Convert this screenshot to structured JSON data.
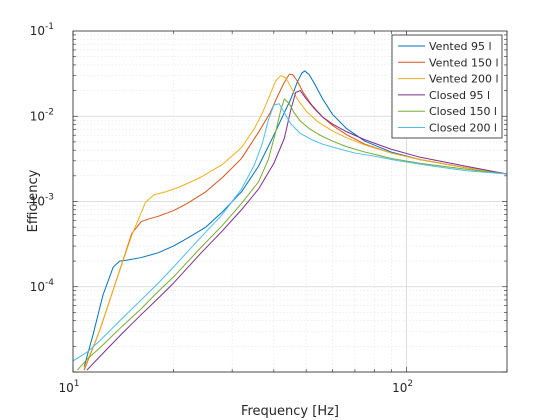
{
  "chart_data": {
    "type": "line",
    "xlabel": "Frequency [Hz]",
    "ylabel": "Efficiency",
    "xscale": "log",
    "yscale": "log",
    "xlim": [
      10,
      200
    ],
    "ylim": [
      1e-05,
      0.1
    ],
    "grid": "on",
    "legend_position": "top-right",
    "x_ticks": [
      {
        "value": 10,
        "base": "10",
        "exp": "1"
      },
      {
        "value": 100,
        "base": "10",
        "exp": "2"
      }
    ],
    "y_ticks": [
      {
        "value": 0.0001,
        "base": "10",
        "exp": "-4"
      },
      {
        "value": 0.001,
        "base": "10",
        "exp": "-3"
      },
      {
        "value": 0.01,
        "base": "10",
        "exp": "-2"
      },
      {
        "value": 0.1,
        "base": "10",
        "exp": "-1"
      }
    ],
    "series": [
      {
        "name": "Vented 95 l",
        "color": "#0072BD",
        "x": [
          10.8,
          11.5,
          12.3,
          13.2,
          13.8,
          14.5,
          16,
          18,
          20,
          22,
          25,
          28,
          32,
          36,
          40,
          43,
          45,
          47,
          48.5,
          49.5,
          51,
          53,
          56,
          60,
          66,
          75,
          90,
          110,
          150,
          200
        ],
        "y": [
          1.15e-05,
          2.8e-05,
          8e-05,
          0.00017,
          0.0002,
          0.000205,
          0.00022,
          0.00025,
          0.0003,
          0.00037,
          0.0005,
          0.00075,
          0.0013,
          0.0026,
          0.006,
          0.011,
          0.016,
          0.025,
          0.032,
          0.034,
          0.031,
          0.024,
          0.016,
          0.0105,
          0.0072,
          0.0051,
          0.0038,
          0.0031,
          0.0025,
          0.0021
        ]
      },
      {
        "name": "Vented 150 l",
        "color": "#D95319",
        "x": [
          10.8,
          12,
          13.5,
          15,
          16,
          16.8,
          18,
          20,
          22,
          25,
          28,
          32,
          36,
          39,
          41,
          43,
          44.5,
          45.5,
          47,
          49,
          52,
          56,
          60,
          66,
          75,
          90,
          110,
          150,
          200
        ],
        "y": [
          1.05e-05,
          3e-05,
          0.00012,
          0.00042,
          0.00058,
          0.00062,
          0.00067,
          0.00078,
          0.00095,
          0.0013,
          0.0019,
          0.0032,
          0.0065,
          0.011,
          0.017,
          0.025,
          0.031,
          0.031,
          0.026,
          0.019,
          0.0135,
          0.0098,
          0.0078,
          0.0061,
          0.0047,
          0.0037,
          0.0031,
          0.0025,
          0.0021
        ]
      },
      {
        "name": "Vented 200 l",
        "color": "#EDB120",
        "x": [
          10.8,
          12,
          13.5,
          15,
          16.5,
          17.5,
          19,
          21,
          24,
          28,
          32,
          35,
          37,
          39,
          40.5,
          42,
          43.5,
          45,
          47,
          50,
          54,
          60,
          66,
          75,
          90,
          110,
          150,
          200
        ],
        "y": [
          1.1e-05,
          3e-05,
          0.00012,
          0.0004,
          0.00098,
          0.0012,
          0.0013,
          0.0015,
          0.0019,
          0.0027,
          0.0043,
          0.0072,
          0.011,
          0.018,
          0.026,
          0.03,
          0.028,
          0.022,
          0.016,
          0.0115,
          0.0087,
          0.0067,
          0.0056,
          0.0046,
          0.0037,
          0.0031,
          0.0025,
          0.0021
        ]
      },
      {
        "name": "Closed 95 l",
        "color": "#7E2F8E",
        "x": [
          11,
          12,
          14,
          16,
          18,
          20,
          24,
          28,
          32,
          36,
          40,
          43,
          45,
          46.5,
          48,
          50,
          53,
          56,
          60,
          66,
          75,
          90,
          110,
          150,
          200
        ],
        "y": [
          1.05e-05,
          1.5e-05,
          2.8e-05,
          4.7e-05,
          7.3e-05,
          0.00011,
          0.00024,
          0.00045,
          0.0008,
          0.0014,
          0.0028,
          0.0055,
          0.012,
          0.019,
          0.02,
          0.016,
          0.0122,
          0.0098,
          0.0081,
          0.0066,
          0.0053,
          0.0041,
          0.0033,
          0.0026,
          0.0021
        ]
      },
      {
        "name": "Closed 150 l",
        "color": "#77AC30",
        "x": [
          10.3,
          11,
          12,
          14,
          16,
          18,
          20,
          24,
          28,
          32,
          36,
          38.5,
          40.5,
          42,
          43,
          44.5,
          46,
          48,
          51,
          55,
          60,
          66,
          75,
          90,
          110,
          150,
          200
        ],
        "y": [
          1.05e-05,
          1.4e-05,
          1.9e-05,
          3.4e-05,
          5.5e-05,
          8.8e-05,
          0.00013,
          0.00028,
          0.00052,
          0.00095,
          0.0017,
          0.0031,
          0.0065,
          0.012,
          0.016,
          0.014,
          0.011,
          0.0088,
          0.0072,
          0.006,
          0.0051,
          0.0044,
          0.0038,
          0.0032,
          0.0028,
          0.0024,
          0.0021
        ]
      },
      {
        "name": "Closed 200 l",
        "color": "#4DBEEE",
        "x": [
          10,
          11,
          12,
          14,
          16,
          18,
          20,
          24,
          28,
          32,
          35,
          37,
          38.5,
          40,
          41.5,
          43,
          45,
          48,
          52,
          56,
          62,
          70,
          80,
          95,
          120,
          150,
          200
        ],
        "y": [
          1.35e-05,
          1.7e-05,
          2.3e-05,
          4.2e-05,
          7e-05,
          0.00011,
          0.00017,
          0.00037,
          0.0007,
          0.0014,
          0.0027,
          0.0049,
          0.009,
          0.0135,
          0.014,
          0.011,
          0.0081,
          0.0063,
          0.0053,
          0.0047,
          0.0042,
          0.0037,
          0.0034,
          0.003,
          0.0026,
          0.0023,
          0.0021
        ]
      }
    ]
  }
}
